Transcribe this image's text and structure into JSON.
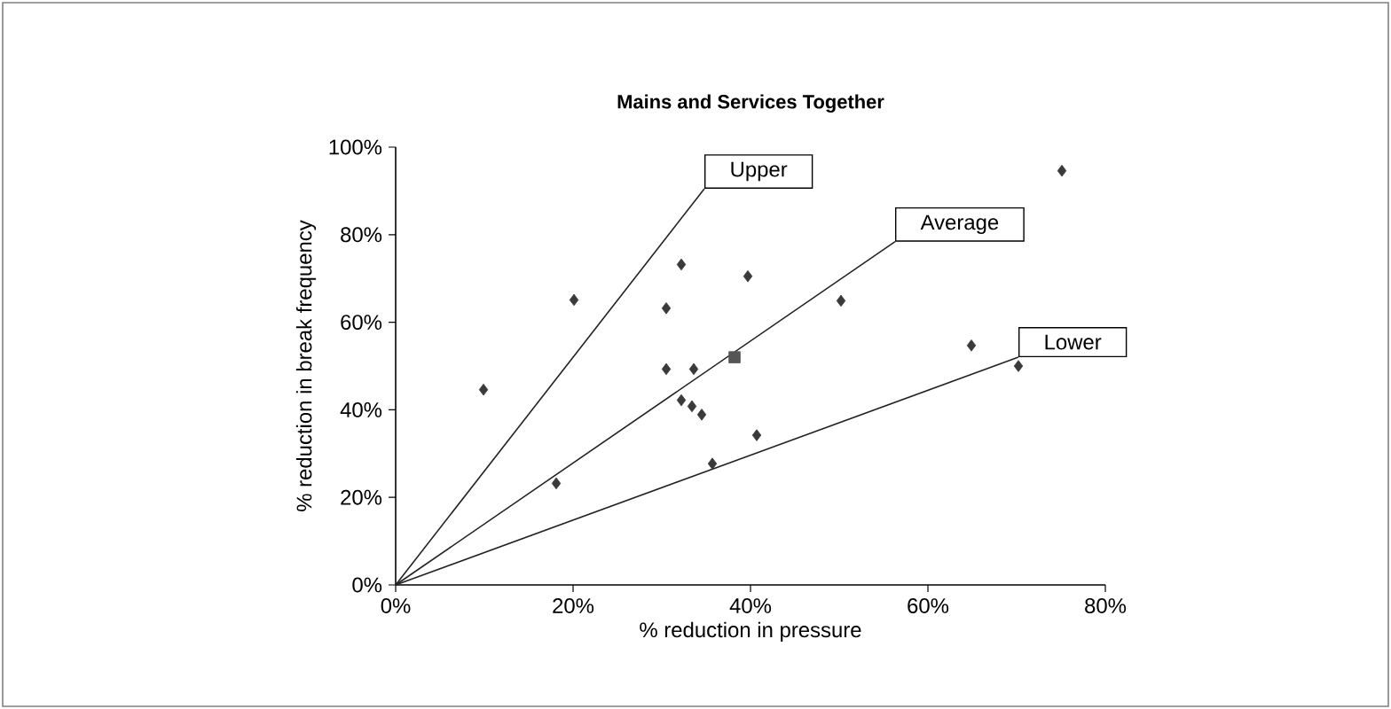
{
  "chart_data": {
    "type": "scatter",
    "title": "Mains and Services Together",
    "xlabel": "% reduction in pressure",
    "ylabel": "% reduction in break frequency",
    "xlim": [
      0,
      80
    ],
    "ylim": [
      0,
      100
    ],
    "xticks": [
      {
        "value": 0,
        "label": "0%"
      },
      {
        "value": 20,
        "label": "20%"
      },
      {
        "value": 40,
        "label": "40%"
      },
      {
        "value": 60,
        "label": "60%"
      },
      {
        "value": 80,
        "label": "80%"
      }
    ],
    "yticks": [
      {
        "value": 0,
        "label": "0%"
      },
      {
        "value": 20,
        "label": "20%"
      },
      {
        "value": 40,
        "label": "40%"
      },
      {
        "value": 60,
        "label": "60%"
      },
      {
        "value": 80,
        "label": "80%"
      },
      {
        "value": 100,
        "label": "100%"
      }
    ],
    "grid": false,
    "series": [
      {
        "marker": "diamond",
        "color": "#3a3a3a",
        "x": [
          9.9,
          18.1,
          20.1,
          32.2,
          39.7,
          30.5,
          30.5,
          33.6,
          32.2,
          33.4,
          34.5,
          35.7,
          40.7,
          75.1,
          50.2,
          64.9,
          70.2
        ],
        "values": [
          44.6,
          23.2,
          65.1,
          73.2,
          70.5,
          63.2,
          49.3,
          49.3,
          42.2,
          40.8,
          38.9,
          27.7,
          34.2,
          94.6,
          64.9,
          54.7,
          50.0
        ]
      },
      {
        "marker": "square",
        "color": "#555555",
        "x": [
          38.2
        ],
        "values": [
          52.0
        ]
      },
      {
        "type": "line",
        "name": "Upper",
        "color": "#222222",
        "marker": "none",
        "x": [
          0,
          34.8
        ],
        "values": [
          0,
          90.5
        ]
      },
      {
        "type": "line",
        "name": "Average",
        "color": "#222222",
        "marker": "none",
        "x": [
          0,
          56.3
        ],
        "values": [
          0,
          78.4
        ]
      },
      {
        "type": "line",
        "name": "Lower",
        "color": "#222222",
        "marker": "none",
        "x": [
          0,
          70.2
        ],
        "values": [
          0,
          52.0
        ]
      }
    ]
  }
}
